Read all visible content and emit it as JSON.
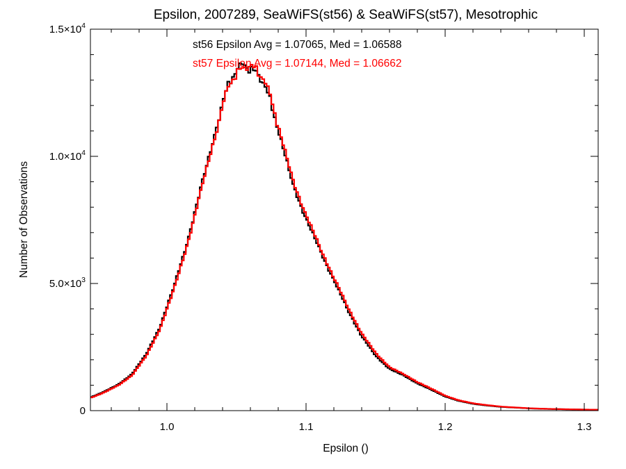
{
  "chart_data": {
    "type": "line",
    "title": "Epsilon, 2007289, SeaWiFS(st56) & SeaWiFS(st57), Mesotrophic",
    "xlabel": "Epsilon ()",
    "ylabel": "Number of Observations",
    "xlim": [
      0.945,
      1.31
    ],
    "ylim": [
      0,
      15000
    ],
    "x_ticks": [
      {
        "value": 1.0,
        "label": "1.0"
      },
      {
        "value": 1.1,
        "label": "1.1"
      },
      {
        "value": 1.2,
        "label": "1.2"
      },
      {
        "value": 1.3,
        "label": "1.3"
      }
    ],
    "y_ticks": [
      {
        "value": 0,
        "mantissa": "0",
        "exponent": ""
      },
      {
        "value": 5000,
        "mantissa": "5.0×10",
        "exponent": "3"
      },
      {
        "value": 10000,
        "mantissa": "1.0×10",
        "exponent": "4"
      },
      {
        "value": 15000,
        "mantissa": "1.5×10",
        "exponent": "4"
      }
    ],
    "x_minor_step": 0.02,
    "y_minor_step": 1000,
    "grid": false,
    "series": [
      {
        "color": "#000000",
        "annotation": "st56 Epsilon Avg = 1.07065, Med = 1.06588",
        "x": [
          0.945,
          0.955,
          0.965,
          0.975,
          0.985,
          0.995,
          1.005,
          1.015,
          1.025,
          1.035,
          1.04,
          1.045,
          1.05,
          1.055,
          1.06,
          1.065,
          1.07,
          1.075,
          1.08,
          1.09,
          1.1,
          1.11,
          1.12,
          1.13,
          1.14,
          1.15,
          1.16,
          1.17,
          1.18,
          1.19,
          1.2,
          1.21,
          1.22,
          1.23,
          1.24,
          1.25,
          1.26,
          1.27,
          1.28,
          1.29,
          1.3,
          1.31
        ],
        "y": [
          520,
          750,
          1020,
          1450,
          2200,
          3300,
          4850,
          6700,
          8850,
          11000,
          12100,
          12950,
          13350,
          13650,
          13400,
          13300,
          12850,
          12100,
          11000,
          9000,
          7550,
          6300,
          5150,
          3950,
          2950,
          2150,
          1650,
          1380,
          1080,
          820,
          560,
          380,
          270,
          200,
          150,
          120,
          90,
          70,
          60,
          50,
          40,
          35
        ]
      },
      {
        "color": "#ff0000",
        "annotation": "st57 Epsilon Avg = 1.07144, Med = 1.06662",
        "x": [
          0.945,
          0.955,
          0.965,
          0.975,
          0.985,
          0.995,
          1.005,
          1.015,
          1.025,
          1.035,
          1.04,
          1.045,
          1.05,
          1.055,
          1.06,
          1.065,
          1.07,
          1.075,
          1.08,
          1.09,
          1.1,
          1.11,
          1.12,
          1.13,
          1.14,
          1.15,
          1.16,
          1.17,
          1.18,
          1.19,
          1.2,
          1.21,
          1.22,
          1.23,
          1.24,
          1.25,
          1.26,
          1.27,
          1.28,
          1.29,
          1.3,
          1.31
        ],
        "y": [
          500,
          720,
          990,
          1400,
          2130,
          3220,
          4750,
          6600,
          8750,
          10900,
          12000,
          12850,
          13250,
          13500,
          13600,
          13350,
          13000,
          12250,
          11150,
          9150,
          7700,
          6400,
          5250,
          4050,
          3050,
          2250,
          1720,
          1430,
          1130,
          860,
          590,
          400,
          290,
          215,
          160,
          125,
          95,
          75,
          62,
          52,
          42,
          36
        ]
      }
    ]
  }
}
